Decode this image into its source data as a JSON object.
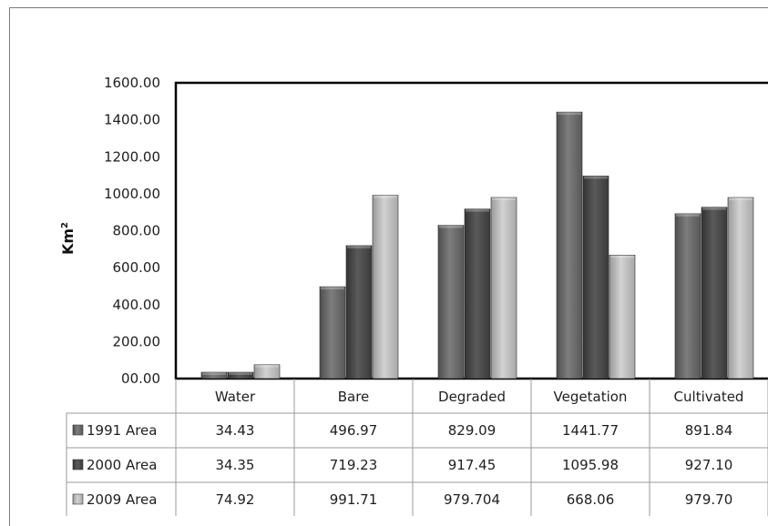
{
  "chart_data": {
    "type": "bar",
    "title": "",
    "xlabel": "",
    "ylabel": "Km",
    "ylabel_superscript": "2",
    "ylim": [
      0,
      1600
    ],
    "yticks": [
      "00.00",
      "200.00",
      "400.00",
      "600.00",
      "800.00",
      "1000.00",
      "1200.00",
      "1400.00",
      "1600.00"
    ],
    "grid": false,
    "legend": "data-table-left",
    "categories": [
      "Water",
      "Bare",
      "Degraded",
      "Vegetation",
      "Cultivated"
    ],
    "series": [
      {
        "name": "1991 Area",
        "color": "#6e6e6e",
        "values": [
          34.43,
          496.97,
          829.09,
          1441.77,
          891.84
        ],
        "labels": [
          "34.43",
          "496.97",
          "829.09",
          "1441.77",
          "891.84"
        ]
      },
      {
        "name": "2000 Area",
        "color": "#4a4a4a",
        "values": [
          34.35,
          719.23,
          917.45,
          1095.98,
          927.1
        ],
        "labels": [
          "34.35",
          "719.23",
          "917.45",
          "1095.98",
          "927.10"
        ]
      },
      {
        "name": "2009 Area",
        "color": "#b4b4b4",
        "values": [
          74.92,
          991.71,
          979.704,
          668.06,
          979.7
        ],
        "labels": [
          "74.92",
          "991.71",
          "979.704",
          "668.06",
          "979.70"
        ]
      }
    ]
  }
}
